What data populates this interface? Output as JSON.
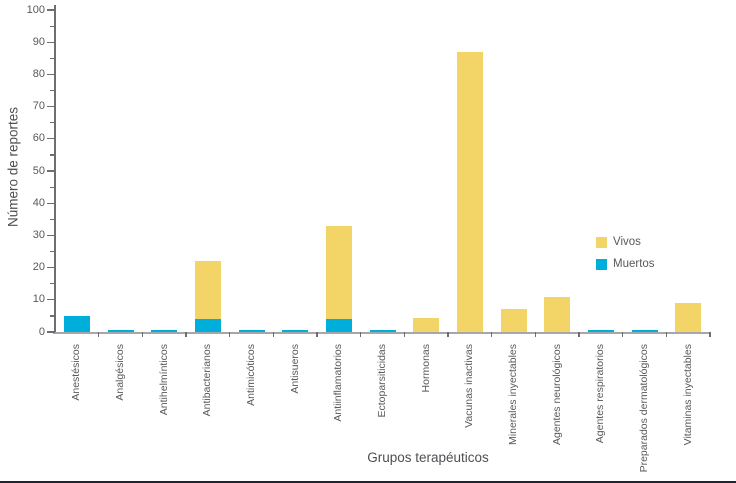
{
  "chart_data": {
    "type": "bar",
    "stacked": true,
    "title": "",
    "xlabel": "Grupos terapéuticos",
    "ylabel": "Número de reportes",
    "ylim": [
      0,
      100
    ],
    "yticks": [
      0,
      10,
      20,
      30,
      40,
      50,
      60,
      70,
      80,
      90,
      100
    ],
    "ytick_minor_step": 5,
    "grid": false,
    "legend_position": "right-center",
    "categories": [
      "Anestésicos",
      "Analgésicos",
      "Antihelmínticos",
      "Antibacterianos",
      "Antimicóticos",
      "Antisueros",
      "Antiinflamatorios",
      "Ectoparsiticidas",
      "Hormonas",
      "Vacunas inactivas",
      "Minerales inyectables",
      "Agentes neurológicos",
      "Agentes respiratorios",
      "Preparados dermatológicos",
      "Vitaminas inyectables"
    ],
    "stack_order_bottom_to_top": [
      "Muertos",
      "Vivos"
    ],
    "series": [
      {
        "name": "Vivos",
        "color": "#F2D566",
        "values": [
          0,
          0,
          0,
          18,
          0,
          0,
          29,
          0,
          4.5,
          87,
          7,
          11,
          0,
          0,
          9
        ]
      },
      {
        "name": "Muertos",
        "color": "#00AEDB",
        "values": [
          5,
          0.3,
          0.3,
          4,
          0.3,
          0.3,
          4,
          0.3,
          0,
          0,
          0,
          0,
          0.3,
          0.3,
          0
        ]
      }
    ]
  },
  "colors": {
    "axis_line": "#6D6E71",
    "baseline": "#A5A7AA",
    "text": "#58595B",
    "bottom_border": "#1C2733",
    "background": "#FFFFFF"
  }
}
